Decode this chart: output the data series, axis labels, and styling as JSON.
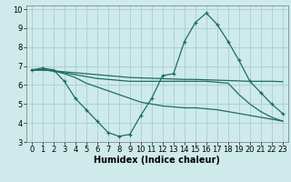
{
  "line1_x": [
    0,
    1,
    2,
    3,
    4,
    5,
    6,
    7,
    8,
    9,
    10,
    11,
    12,
    13,
    14,
    15,
    16,
    17,
    18,
    19,
    20,
    21,
    22,
    23
  ],
  "line1_y": [
    6.8,
    6.9,
    6.8,
    6.2,
    5.3,
    4.7,
    4.1,
    3.5,
    3.3,
    3.4,
    4.4,
    5.3,
    6.5,
    6.6,
    8.3,
    9.3,
    9.8,
    9.2,
    8.3,
    7.3,
    6.2,
    5.6,
    5.0,
    4.5
  ],
  "line2_x": [
    0,
    1,
    2,
    3,
    4,
    5,
    6,
    7,
    8,
    9,
    10,
    11,
    12,
    13,
    14,
    15,
    16,
    17,
    18,
    19,
    20,
    21,
    22,
    23
  ],
  "line2_y": [
    6.8,
    6.8,
    6.75,
    6.7,
    6.65,
    6.6,
    6.55,
    6.5,
    6.45,
    6.4,
    6.38,
    6.36,
    6.34,
    6.32,
    6.3,
    6.3,
    6.28,
    6.26,
    6.24,
    6.22,
    6.2,
    6.2,
    6.2,
    6.18
  ],
  "line3_x": [
    0,
    1,
    2,
    3,
    4,
    5,
    6,
    7,
    8,
    9,
    10,
    11,
    12,
    13,
    14,
    15,
    16,
    17,
    18,
    19,
    20,
    21,
    22,
    23
  ],
  "line3_y": [
    6.8,
    6.8,
    6.75,
    6.6,
    6.4,
    6.1,
    5.9,
    5.7,
    5.5,
    5.3,
    5.1,
    5.0,
    4.9,
    4.85,
    4.8,
    4.8,
    4.75,
    4.7,
    4.6,
    4.5,
    4.4,
    4.3,
    4.2,
    4.1
  ],
  "line4_x": [
    0,
    1,
    2,
    3,
    4,
    5,
    6,
    7,
    8,
    9,
    10,
    11,
    12,
    13,
    14,
    15,
    16,
    17,
    18,
    19,
    20,
    21,
    22,
    23
  ],
  "line4_y": [
    6.8,
    6.8,
    6.75,
    6.65,
    6.55,
    6.45,
    6.35,
    6.3,
    6.25,
    6.2,
    6.2,
    6.2,
    6.2,
    6.2,
    6.2,
    6.2,
    6.2,
    6.15,
    6.1,
    5.5,
    5.0,
    4.6,
    4.3,
    4.1
  ],
  "line_color": "#1e6e5e",
  "bg_color": "#ceeaea",
  "grid_color": "#a8cece",
  "xlabel": "Humidex (Indice chaleur)",
  "xlabel_fontsize": 7,
  "xlim": [
    -0.5,
    23.5
  ],
  "ylim": [
    3,
    10.2
  ],
  "yticks": [
    3,
    4,
    5,
    6,
    7,
    8,
    9,
    10
  ],
  "xticks": [
    0,
    1,
    2,
    3,
    4,
    5,
    6,
    7,
    8,
    9,
    10,
    11,
    12,
    13,
    14,
    15,
    16,
    17,
    18,
    19,
    20,
    21,
    22,
    23
  ],
  "tick_fontsize": 6
}
